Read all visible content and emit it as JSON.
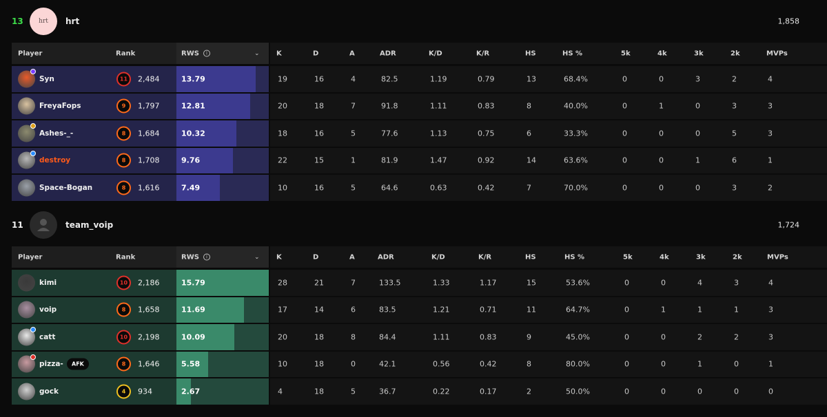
{
  "columns": {
    "player": "Player",
    "rank": "Rank",
    "rws": "RWS",
    "stats": [
      "K",
      "D",
      "A",
      "ADR",
      "K/D",
      "K/R",
      "HS",
      "HS %",
      "5k",
      "4k",
      "3k",
      "2k",
      "MVPs"
    ]
  },
  "teams": [
    {
      "score": "13",
      "name": "hrt",
      "avatar_text": "hrt",
      "elo": "1,858",
      "colors": {
        "score": "#3ddc4a",
        "row": "#24244a",
        "rws_fill": "#3c3a8f",
        "rws_track": "#2a2a55",
        "avatar_bg": "#fbd6d6"
      },
      "players": [
        {
          "name": "Syn",
          "level": "11",
          "ring": "#e0302a",
          "elo": "2,484",
          "rws": "13.79",
          "rws_frac": 0.86,
          "stats": [
            "19",
            "16",
            "4",
            "82.5",
            "1.19",
            "0.79",
            "13",
            "68.4%",
            "0",
            "0",
            "3",
            "2",
            "4"
          ],
          "avatar": "#e85a2a",
          "badge": "#7a3cff",
          "name_color": "#f0f0f0"
        },
        {
          "name": "FreyaFops",
          "level": "9",
          "ring": "#ff6a1a",
          "elo": "1,797",
          "rws": "12.81",
          "rws_frac": 0.8,
          "stats": [
            "20",
            "18",
            "7",
            "91.8",
            "1.11",
            "0.83",
            "8",
            "40.0%",
            "0",
            "1",
            "0",
            "3",
            "3"
          ],
          "avatar": "#d9c2a0",
          "badge": "",
          "name_color": "#f0f0f0"
        },
        {
          "name": "Ashes-_-",
          "level": "8",
          "ring": "#ff6a1a",
          "elo": "1,684",
          "rws": "10.32",
          "rws_frac": 0.65,
          "stats": [
            "18",
            "16",
            "5",
            "77.6",
            "1.13",
            "0.75",
            "6",
            "33.3%",
            "0",
            "0",
            "0",
            "5",
            "3"
          ],
          "avatar": "#8c8a6e",
          "badge": "#e0a01a",
          "name_color": "#f0f0f0"
        },
        {
          "name": "destroy",
          "level": "8",
          "ring": "#ff6a1a",
          "elo": "1,708",
          "rws": "9.76",
          "rws_frac": 0.61,
          "stats": [
            "22",
            "15",
            "1",
            "81.9",
            "1.47",
            "0.92",
            "14",
            "63.6%",
            "0",
            "0",
            "1",
            "6",
            "1"
          ],
          "avatar": "#b8b8b8",
          "badge": "#2a8cff",
          "name_color": "#ff5a1a"
        },
        {
          "name": "Space-Bogan",
          "level": "8",
          "ring": "#ff6a1a",
          "elo": "1,616",
          "rws": "7.49",
          "rws_frac": 0.47,
          "stats": [
            "10",
            "16",
            "5",
            "64.6",
            "0.63",
            "0.42",
            "7",
            "70.0%",
            "0",
            "0",
            "0",
            "3",
            "2"
          ],
          "avatar": "#9aa0a8",
          "badge": "",
          "name_color": "#f0f0f0"
        }
      ]
    },
    {
      "score": "11",
      "name": "team_voip",
      "avatar_text": "",
      "elo": "1,724",
      "colors": {
        "score": "#f0f0f0",
        "row": "#1d3a30",
        "rws_fill": "#3a8a6a",
        "rws_track": "#244a3d",
        "avatar_bg": "#2a2a2a"
      },
      "players": [
        {
          "name": "kimi",
          "level": "10",
          "ring": "#e0302a",
          "elo": "2,186",
          "rws": "15.79",
          "rws_frac": 1.0,
          "stats": [
            "28",
            "21",
            "7",
            "133.5",
            "1.33",
            "1.17",
            "15",
            "53.6%",
            "0",
            "0",
            "4",
            "3",
            "4"
          ],
          "avatar": "#3a3a3a",
          "badge": "",
          "name_color": "#f0f0f0"
        },
        {
          "name": "voip",
          "level": "8",
          "ring": "#ff6a1a",
          "elo": "1,658",
          "rws": "11.69",
          "rws_frac": 0.73,
          "stats": [
            "17",
            "14",
            "6",
            "83.5",
            "1.21",
            "0.71",
            "11",
            "64.7%",
            "0",
            "1",
            "1",
            "1",
            "3"
          ],
          "avatar": "#a88fa0",
          "badge": "",
          "name_color": "#f0f0f0"
        },
        {
          "name": "catt",
          "level": "10",
          "ring": "#e0302a",
          "elo": "2,198",
          "rws": "10.09",
          "rws_frac": 0.63,
          "stats": [
            "20",
            "18",
            "8",
            "84.4",
            "1.11",
            "0.83",
            "9",
            "45.0%",
            "0",
            "0",
            "2",
            "2",
            "3"
          ],
          "avatar": "#e8e8e8",
          "badge": "#2a8cff",
          "name_color": "#f0f0f0"
        },
        {
          "name": "pizza-",
          "afk": "AFK",
          "level": "8",
          "ring": "#ff6a1a",
          "elo": "1,646",
          "rws": "5.58",
          "rws_frac": 0.34,
          "stats": [
            "10",
            "18",
            "0",
            "42.1",
            "0.56",
            "0.42",
            "8",
            "80.0%",
            "0",
            "0",
            "1",
            "0",
            "1"
          ],
          "avatar": "#c89aa0",
          "badge": "#e0302a",
          "name_color": "#f0f0f0"
        },
        {
          "name": "gock",
          "level": "4",
          "ring": "#f0c020",
          "elo": "934",
          "rws": "2.67",
          "rws_frac": 0.16,
          "stats": [
            "4",
            "18",
            "5",
            "36.7",
            "0.22",
            "0.17",
            "2",
            "50.0%",
            "0",
            "0",
            "0",
            "0",
            "0"
          ],
          "avatar": "#d0d0d0",
          "badge": "",
          "name_color": "#f0f0f0"
        }
      ]
    }
  ]
}
